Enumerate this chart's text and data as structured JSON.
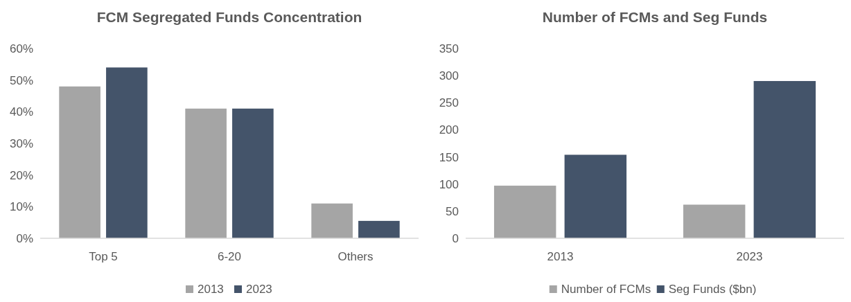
{
  "chart_data": [
    {
      "type": "bar",
      "title": "FCM Segregated Funds Concentration",
      "categories": [
        "Top 5",
        "6-20",
        "Others"
      ],
      "series": [
        {
          "name": "2013",
          "color": "#a5a5a5",
          "values": [
            48,
            41,
            11
          ]
        },
        {
          "name": "2023",
          "color": "#44546a",
          "values": [
            54,
            41,
            5.5
          ]
        }
      ],
      "ylim": [
        0,
        60
      ],
      "yticks": [
        {
          "value": 0,
          "label": "0%"
        },
        {
          "value": 10,
          "label": "10%"
        },
        {
          "value": 20,
          "label": "20%"
        },
        {
          "value": 30,
          "label": "30%"
        },
        {
          "value": 40,
          "label": "40%"
        },
        {
          "value": 50,
          "label": "50%"
        },
        {
          "value": 60,
          "label": "60%"
        }
      ],
      "grid": false,
      "legend": "bottom"
    },
    {
      "type": "bar",
      "title": "Number of FCMs and Seg Funds",
      "categories": [
        "2013",
        "2023"
      ],
      "series": [
        {
          "name": "Number of FCMs",
          "color": "#a5a5a5",
          "values": [
            97,
            62
          ]
        },
        {
          "name": "Seg Funds ($bn)",
          "color": "#44546a",
          "values": [
            154,
            290
          ]
        }
      ],
      "ylim": [
        0,
        350
      ],
      "yticks": [
        0,
        50,
        100,
        150,
        200,
        250,
        300,
        350
      ],
      "grid": false,
      "legend": "bottom"
    }
  ]
}
